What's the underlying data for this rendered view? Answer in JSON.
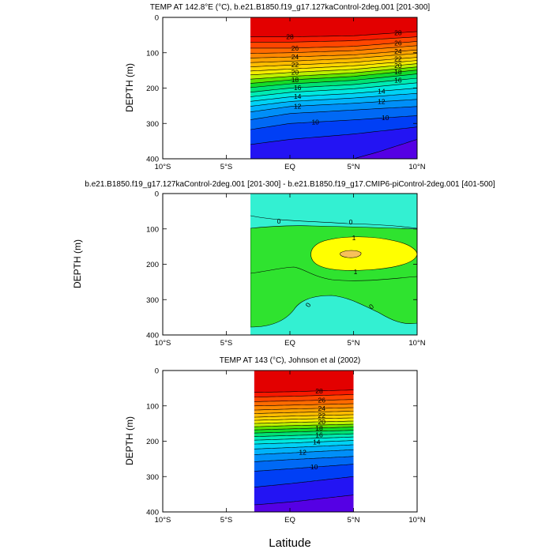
{
  "chart_data": [
    {
      "type": "contour",
      "title": "TEMP AT 142.8°E (°C), b.e21.B1850.f19_g17.127kaControl-2deg.001 [201-300]",
      "ylabel": "DEPTH (m)",
      "xlabel": "",
      "xlim": [
        -10,
        10
      ],
      "ylim": [
        400,
        0
      ],
      "x_ticks": [
        -10,
        -5,
        0,
        5,
        10
      ],
      "x_tick_labels": [
        "10°S",
        "5°S",
        "EQ",
        "5°N",
        "10°N"
      ],
      "y_ticks": [
        0,
        100,
        200,
        300,
        400
      ],
      "data_xlim": [
        -3.2,
        10
      ],
      "contour_levels": [
        8,
        9,
        10,
        11,
        12,
        13,
        14,
        15,
        16,
        17,
        18,
        19,
        20,
        21,
        22,
        23,
        24,
        25,
        26,
        27,
        28
      ],
      "contour_labels": [
        "28",
        "26",
        "24",
        "22",
        "20",
        "18",
        "16",
        "14",
        "12",
        "10",
        "28",
        "26",
        "24",
        "22",
        "20",
        "18",
        "16",
        "14",
        "12",
        "10"
      ],
      "isotherms": [
        {
          "level": 28,
          "depths": [
            [
              -3.2,
              55
            ],
            [
              0,
              55
            ],
            [
              5,
              52
            ],
            [
              10,
              40
            ]
          ]
        },
        {
          "level": 27,
          "depths": [
            [
              -3.2,
              70
            ],
            [
              0,
              70
            ],
            [
              5,
              66
            ],
            [
              10,
              55
            ]
          ]
        },
        {
          "level": 26,
          "depths": [
            [
              -3.2,
              87
            ],
            [
              0,
              87
            ],
            [
              5,
              82
            ],
            [
              10,
              68
            ]
          ]
        },
        {
          "level": 25,
          "depths": [
            [
              -3.2,
              102
            ],
            [
              0,
              100
            ],
            [
              5,
              94
            ],
            [
              10,
              80
            ]
          ]
        },
        {
          "level": 24,
          "depths": [
            [
              -3.2,
              115
            ],
            [
              0,
              112
            ],
            [
              5,
              106
            ],
            [
              10,
              92
            ]
          ]
        },
        {
          "level": 23,
          "depths": [
            [
              -3.2,
              128
            ],
            [
              0,
              124
            ],
            [
              5,
              116
            ],
            [
              10,
              102
            ]
          ]
        },
        {
          "level": 22,
          "depths": [
            [
              -3.2,
              140
            ],
            [
              0,
              135
            ],
            [
              5,
              127
            ],
            [
              10,
              113
            ]
          ]
        },
        {
          "level": 21,
          "depths": [
            [
              -3.2,
              152
            ],
            [
              0,
              146
            ],
            [
              5,
              137
            ],
            [
              10,
              122
            ]
          ]
        },
        {
          "level": 20,
          "depths": [
            [
              -3.2,
              163
            ],
            [
              0,
              156
            ],
            [
              5,
              147
            ],
            [
              10,
              131
            ]
          ]
        },
        {
          "level": 19,
          "depths": [
            [
              -3.2,
              175
            ],
            [
              0,
              167
            ],
            [
              5,
              157
            ],
            [
              10,
              140
            ]
          ]
        },
        {
          "level": 18,
          "depths": [
            [
              -3.2,
              187
            ],
            [
              0,
              177
            ],
            [
              5,
              167
            ],
            [
              10,
              149
            ]
          ]
        },
        {
          "level": 17,
          "depths": [
            [
              -3.2,
              199
            ],
            [
              0,
              188
            ],
            [
              5,
              178
            ],
            [
              10,
              160
            ]
          ]
        },
        {
          "level": 16,
          "depths": [
            [
              -3.2,
              212
            ],
            [
              0,
              200
            ],
            [
              5,
              190
            ],
            [
              10,
              172
            ]
          ]
        },
        {
          "level": 15,
          "depths": [
            [
              -3.2,
              225
            ],
            [
              0,
              212
            ],
            [
              5,
              202
            ],
            [
              10,
              185
            ]
          ]
        },
        {
          "level": 14,
          "depths": [
            [
              -3.2,
              238
            ],
            [
              0,
              225
            ],
            [
              5,
              215
            ],
            [
              10,
              200
            ]
          ]
        },
        {
          "level": 13,
          "depths": [
            [
              -3.2,
              252
            ],
            [
              0,
              238
            ],
            [
              5,
              228
            ],
            [
              10,
              215
            ]
          ]
        },
        {
          "level": 12,
          "depths": [
            [
              -3.2,
              268
            ],
            [
              0,
              252
            ],
            [
              5,
              243
            ],
            [
              10,
              232
            ]
          ]
        },
        {
          "level": 11,
          "depths": [
            [
              -3.2,
              290
            ],
            [
              0,
              272
            ],
            [
              5,
              262
            ],
            [
              10,
              252
            ]
          ]
        },
        {
          "level": 10,
          "depths": [
            [
              -3.2,
              318
            ],
            [
              0,
              300
            ],
            [
              5,
              290
            ],
            [
              10,
              278
            ]
          ]
        },
        {
          "level": 9,
          "depths": [
            [
              -3.2,
              360
            ],
            [
              0,
              345
            ],
            [
              5,
              330
            ],
            [
              10,
              310
            ]
          ]
        },
        {
          "level": 8,
          "depths": [
            [
              4,
              410
            ],
            [
              7,
              380
            ],
            [
              10,
              345
            ]
          ]
        }
      ]
    },
    {
      "type": "contour",
      "title": "b.e21.B1850.f19_g17.127kaControl-2deg.001 [201-300] - b.e21.B1850.f19_g17.CMIP6-piControl-2deg.001 [401-500]",
      "ylabel": "DEPTH (m)",
      "xlabel": "",
      "xlim": [
        -10,
        10
      ],
      "ylim": [
        400,
        0
      ],
      "x_ticks": [
        -10,
        -5,
        0,
        5,
        10
      ],
      "x_tick_labels": [
        "10°S",
        "5°S",
        "EQ",
        "5°N",
        "10°N"
      ],
      "y_ticks": [
        0,
        100,
        200,
        300,
        400
      ],
      "data_xlim": [
        -3.2,
        10
      ],
      "contour_levels": [
        0,
        1,
        2
      ],
      "contour_labels": [
        "0",
        "0",
        "1",
        "1",
        "0",
        "0"
      ],
      "regions": [
        {
          "range": "below 0",
          "color": "#33f0d2"
        },
        {
          "range": "0 to 1",
          "color": "#2fe32f"
        },
        {
          "range": "1 to 2",
          "color": "#ffff00"
        },
        {
          "range": "above 2",
          "color": "#f7c05a"
        }
      ]
    },
    {
      "type": "contour",
      "title": "TEMP AT 143 (°C), Johnson et al (2002)",
      "ylabel": "DEPTH (m)",
      "xlabel": "Latitude",
      "xlim": [
        -10,
        10
      ],
      "ylim": [
        400,
        0
      ],
      "x_ticks": [
        -10,
        -5,
        0,
        5,
        10
      ],
      "x_tick_labels": [
        "10°S",
        "5°S",
        "EQ",
        "5°N",
        "10°N"
      ],
      "y_ticks": [
        0,
        100,
        200,
        300,
        400
      ],
      "data_xlim": [
        -2.8,
        5
      ],
      "contour_levels": [
        8,
        9,
        10,
        11,
        12,
        13,
        14,
        15,
        16,
        17,
        18,
        19,
        20,
        21,
        22,
        23,
        24,
        25,
        26,
        27,
        28
      ],
      "contour_labels": [
        "28",
        "26",
        "24",
        "22",
        "20",
        "18",
        "16",
        "14",
        "12",
        "10"
      ],
      "isotherms": [
        {
          "level": 28,
          "depths": [
            [
              -2.8,
              62
            ],
            [
              0,
              60
            ],
            [
              5,
              55
            ]
          ]
        },
        {
          "level": 27,
          "depths": [
            [
              -2.8,
              75
            ],
            [
              0,
              73
            ],
            [
              5,
              68
            ]
          ]
        },
        {
          "level": 26,
          "depths": [
            [
              -2.8,
              88
            ],
            [
              0,
              86
            ],
            [
              5,
              82
            ]
          ]
        },
        {
          "level": 25,
          "depths": [
            [
              -2.8,
              100
            ],
            [
              0,
              98
            ],
            [
              5,
              94
            ]
          ]
        },
        {
          "level": 24,
          "depths": [
            [
              -2.8,
              112
            ],
            [
              0,
              109
            ],
            [
              5,
              105
            ]
          ]
        },
        {
          "level": 23,
          "depths": [
            [
              -2.8,
              122
            ],
            [
              0,
              119
            ],
            [
              5,
              115
            ]
          ]
        },
        {
          "level": 22,
          "depths": [
            [
              -2.8,
              132
            ],
            [
              0,
              129
            ],
            [
              5,
              125
            ]
          ]
        },
        {
          "level": 21,
          "depths": [
            [
              -2.8,
              141
            ],
            [
              0,
              138
            ],
            [
              5,
              134
            ]
          ]
        },
        {
          "level": 20,
          "depths": [
            [
              -2.8,
              150
            ],
            [
              0,
              147
            ],
            [
              5,
              143
            ]
          ]
        },
        {
          "level": 19,
          "depths": [
            [
              -2.8,
              159
            ],
            [
              0,
              156
            ],
            [
              5,
              152
            ]
          ]
        },
        {
          "level": 18,
          "depths": [
            [
              -2.8,
              168
            ],
            [
              0,
              165
            ],
            [
              5,
              160
            ]
          ]
        },
        {
          "level": 17,
          "depths": [
            [
              -2.8,
              177
            ],
            [
              0,
              174
            ],
            [
              5,
              169
            ]
          ]
        },
        {
          "level": 16,
          "depths": [
            [
              -2.8,
              187
            ],
            [
              0,
              184
            ],
            [
              5,
              179
            ]
          ]
        },
        {
          "level": 15,
          "depths": [
            [
              -2.8,
              197
            ],
            [
              0,
              194
            ],
            [
              5,
              188
            ]
          ]
        },
        {
          "level": 14,
          "depths": [
            [
              -2.8,
              208
            ],
            [
              0,
              205
            ],
            [
              5,
              198
            ]
          ]
        },
        {
          "level": 13,
          "depths": [
            [
              -2.8,
              222
            ],
            [
              0,
              218
            ],
            [
              5,
              210
            ]
          ]
        },
        {
          "level": 12,
          "depths": [
            [
              -2.8,
              238
            ],
            [
              0,
              233
            ],
            [
              5,
              224
            ]
          ]
        },
        {
          "level": 11,
          "depths": [
            [
              -2.8,
              258
            ],
            [
              0,
              252
            ],
            [
              5,
              243
            ]
          ]
        },
        {
          "level": 10,
          "depths": [
            [
              -2.8,
              285
            ],
            [
              0,
              278
            ],
            [
              5,
              265
            ]
          ]
        },
        {
          "level": 9,
          "depths": [
            [
              -2.8,
              330
            ],
            [
              0,
              320
            ],
            [
              5,
              300
            ]
          ]
        },
        {
          "level": 8,
          "depths": [
            [
              -2.8,
              380
            ],
            [
              0,
              372
            ],
            [
              5,
              352
            ]
          ]
        }
      ]
    }
  ]
}
